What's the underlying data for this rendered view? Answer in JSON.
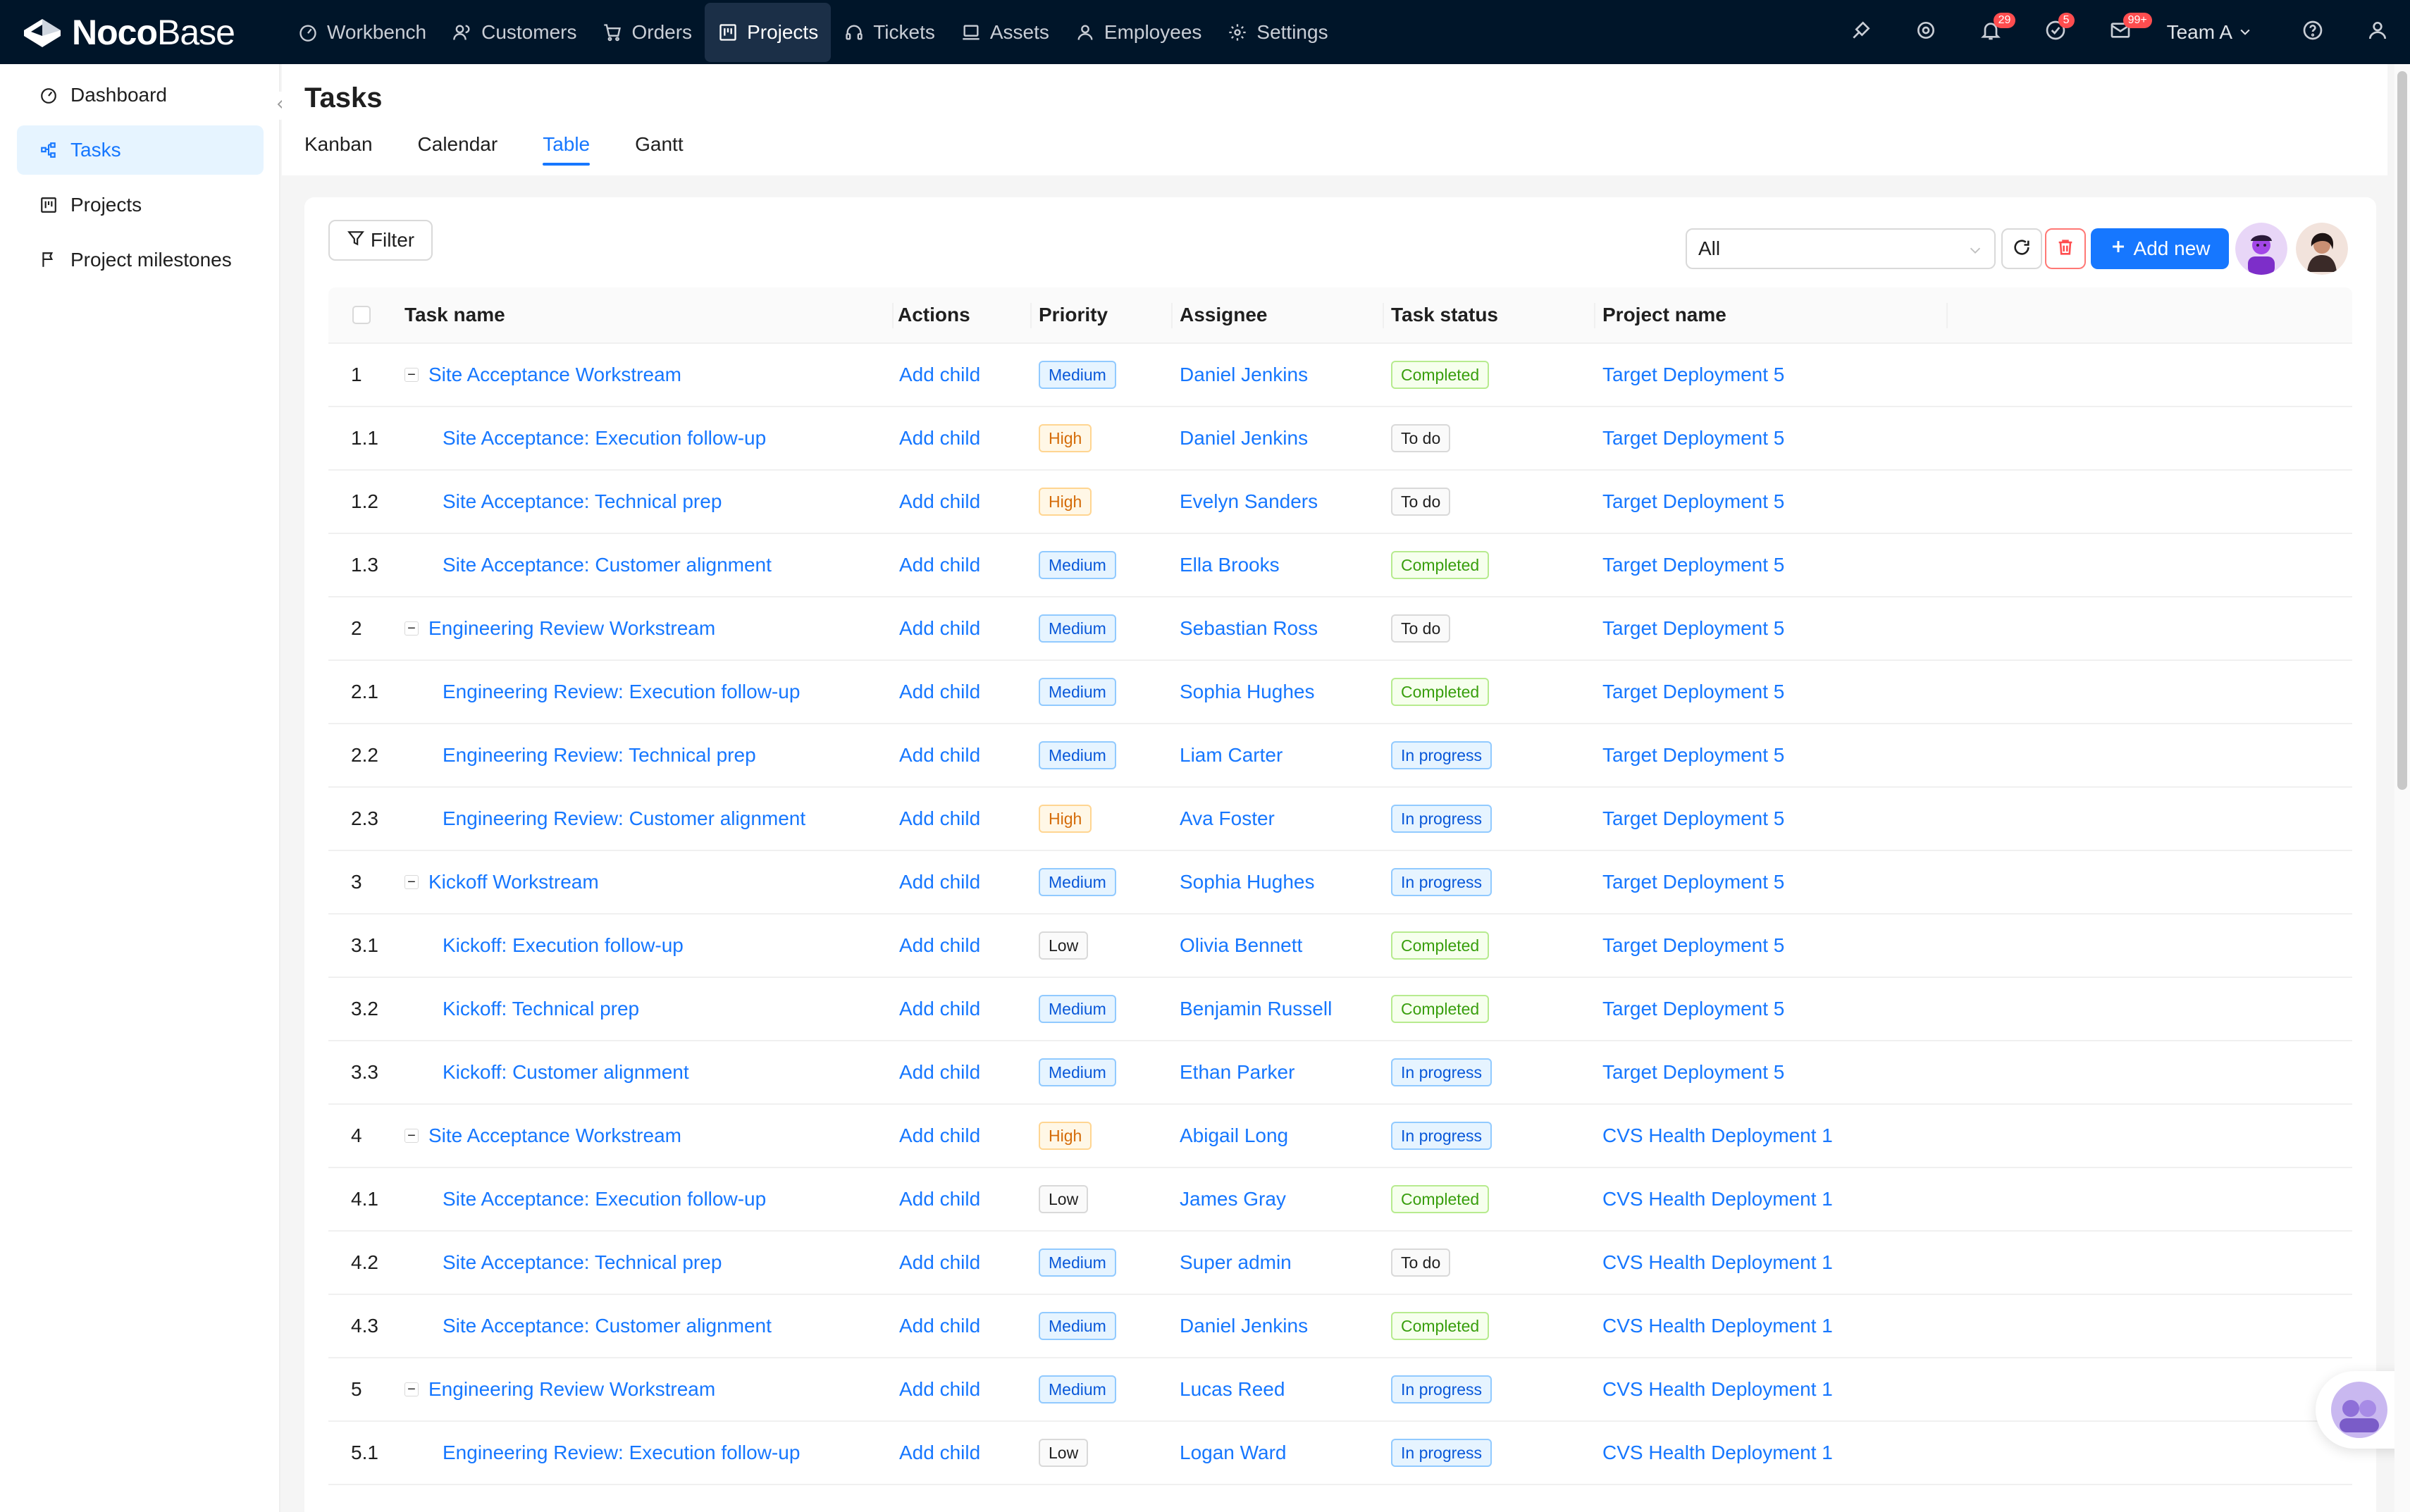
{
  "app": {
    "logo_bold": "Noco",
    "logo_light": "Base"
  },
  "topnav": {
    "items": [
      {
        "label": "Workbench",
        "icon": "dashboard-icon"
      },
      {
        "label": "Customers",
        "icon": "user-group-icon"
      },
      {
        "label": "Orders",
        "icon": "cart-icon"
      },
      {
        "label": "Projects",
        "icon": "board-icon",
        "active": true
      },
      {
        "label": "Tickets",
        "icon": "headset-icon"
      },
      {
        "label": "Assets",
        "icon": "laptop-icon"
      },
      {
        "label": "Employees",
        "icon": "user-icon"
      },
      {
        "label": "Settings",
        "icon": "gear-icon"
      }
    ],
    "right": {
      "notifications_badge": "29",
      "tasks_badge": "5",
      "messages_badge": "99+",
      "team_label": "Team A"
    }
  },
  "sidebar": {
    "items": [
      {
        "label": "Dashboard",
        "icon": "dashboard-icon"
      },
      {
        "label": "Tasks",
        "icon": "tree-icon",
        "active": true
      },
      {
        "label": "Projects",
        "icon": "board-icon"
      },
      {
        "label": "Project milestones",
        "icon": "flag-icon"
      }
    ]
  },
  "page": {
    "title": "Tasks",
    "tabs": [
      "Kanban",
      "Calendar",
      "Table",
      "Gantt"
    ],
    "active_tab": "Table"
  },
  "toolbar": {
    "filter_label": "Filter",
    "select_value": "All",
    "add_label": "Add new"
  },
  "table": {
    "columns": [
      "Task name",
      "Actions",
      "Priority",
      "Assignee",
      "Task status",
      "Project name"
    ],
    "rows": [
      {
        "index": "1",
        "task": "Site Acceptance Workstream",
        "action": "Add child",
        "priority": "Medium",
        "assignee": "Daniel Jenkins",
        "status": "Completed",
        "project": "Target Deployment 5",
        "parent": true
      },
      {
        "index": "1.1",
        "task": "Site Acceptance: Execution follow-up",
        "action": "Add child",
        "priority": "High",
        "assignee": "Daniel Jenkins",
        "status": "To do",
        "project": "Target Deployment 5"
      },
      {
        "index": "1.2",
        "task": "Site Acceptance: Technical prep",
        "action": "Add child",
        "priority": "High",
        "assignee": "Evelyn Sanders",
        "status": "To do",
        "project": "Target Deployment 5"
      },
      {
        "index": "1.3",
        "task": "Site Acceptance: Customer alignment",
        "action": "Add child",
        "priority": "Medium",
        "assignee": "Ella Brooks",
        "status": "Completed",
        "project": "Target Deployment 5"
      },
      {
        "index": "2",
        "task": "Engineering Review Workstream",
        "action": "Add child",
        "priority": "Medium",
        "assignee": "Sebastian Ross",
        "status": "To do",
        "project": "Target Deployment 5",
        "parent": true
      },
      {
        "index": "2.1",
        "task": "Engineering Review: Execution follow-up",
        "action": "Add child",
        "priority": "Medium",
        "assignee": "Sophia Hughes",
        "status": "Completed",
        "project": "Target Deployment 5"
      },
      {
        "index": "2.2",
        "task": "Engineering Review: Technical prep",
        "action": "Add child",
        "priority": "Medium",
        "assignee": "Liam Carter",
        "status": "In progress",
        "project": "Target Deployment 5"
      },
      {
        "index": "2.3",
        "task": "Engineering Review: Customer alignment",
        "action": "Add child",
        "priority": "High",
        "assignee": "Ava Foster",
        "status": "In progress",
        "project": "Target Deployment 5"
      },
      {
        "index": "3",
        "task": "Kickoff Workstream",
        "action": "Add child",
        "priority": "Medium",
        "assignee": "Sophia Hughes",
        "status": "In progress",
        "project": "Target Deployment 5",
        "parent": true
      },
      {
        "index": "3.1",
        "task": "Kickoff: Execution follow-up",
        "action": "Add child",
        "priority": "Low",
        "assignee": "Olivia Bennett",
        "status": "Completed",
        "project": "Target Deployment 5"
      },
      {
        "index": "3.2",
        "task": "Kickoff: Technical prep",
        "action": "Add child",
        "priority": "Medium",
        "assignee": "Benjamin Russell",
        "status": "Completed",
        "project": "Target Deployment 5"
      },
      {
        "index": "3.3",
        "task": "Kickoff: Customer alignment",
        "action": "Add child",
        "priority": "Medium",
        "assignee": "Ethan Parker",
        "status": "In progress",
        "project": "Target Deployment 5"
      },
      {
        "index": "4",
        "task": "Site Acceptance Workstream",
        "action": "Add child",
        "priority": "High",
        "assignee": "Abigail Long",
        "status": "In progress",
        "project": "CVS Health Deployment 1",
        "parent": true
      },
      {
        "index": "4.1",
        "task": "Site Acceptance: Execution follow-up",
        "action": "Add child",
        "priority": "Low",
        "assignee": "James Gray",
        "status": "Completed",
        "project": "CVS Health Deployment 1"
      },
      {
        "index": "4.2",
        "task": "Site Acceptance: Technical prep",
        "action": "Add child",
        "priority": "Medium",
        "assignee": "Super admin",
        "status": "To do",
        "project": "CVS Health Deployment 1"
      },
      {
        "index": "4.3",
        "task": "Site Acceptance: Customer alignment",
        "action": "Add child",
        "priority": "Medium",
        "assignee": "Daniel Jenkins",
        "status": "Completed",
        "project": "CVS Health Deployment 1"
      },
      {
        "index": "5",
        "task": "Engineering Review Workstream",
        "action": "Add child",
        "priority": "Medium",
        "assignee": "Lucas Reed",
        "status": "In progress",
        "project": "CVS Health Deployment 1",
        "parent": true
      },
      {
        "index": "5.1",
        "task": "Engineering Review: Execution follow-up",
        "action": "Add child",
        "priority": "Low",
        "assignee": "Logan Ward",
        "status": "In progress",
        "project": "CVS Health Deployment 1"
      }
    ]
  },
  "colors": {
    "topbar_bg": "#001529",
    "accent": "#1677ff",
    "danger": "#ff4d4f"
  }
}
